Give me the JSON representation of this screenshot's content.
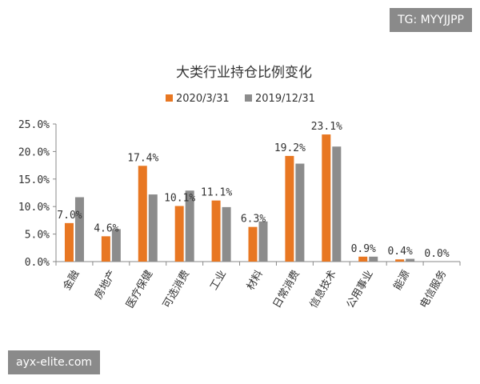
{
  "watermarks": {
    "top_right": "TG: MYYJJPP",
    "bottom_left": "ayx-elite.com"
  },
  "chart_data": {
    "type": "bar",
    "title": "大类行业持仓比例变化",
    "xlabel": "",
    "ylabel": "",
    "ylim": [
      0,
      25
    ],
    "y_ticks": [
      "0.0%",
      "5.0%",
      "10.0%",
      "15.0%",
      "20.0%",
      "25.0%"
    ],
    "categories": [
      "金融",
      "房地产",
      "医疗保健",
      "可选消费",
      "工业",
      "材料",
      "日常消费",
      "信息技术",
      "公用事业",
      "能源",
      "电信服务"
    ],
    "series": [
      {
        "name": "2020/3/31",
        "color": "#E87722",
        "values": [
          7.0,
          4.6,
          17.4,
          10.1,
          11.1,
          6.3,
          19.2,
          23.1,
          0.9,
          0.4,
          0.0
        ],
        "data_labels": [
          "7.0%",
          "4.6%",
          "17.4%",
          "10.1%",
          "11.1%",
          "6.3%",
          "19.2%",
          "23.1%",
          "0.9%",
          "0.4%",
          "0.0%"
        ]
      },
      {
        "name": "2019/12/31",
        "color": "#8C8C8C",
        "values": [
          11.7,
          5.9,
          12.2,
          12.9,
          9.9,
          7.3,
          17.8,
          20.9,
          0.9,
          0.5,
          0.0
        ]
      }
    ],
    "legend_position": "top-center",
    "grid": false
  }
}
